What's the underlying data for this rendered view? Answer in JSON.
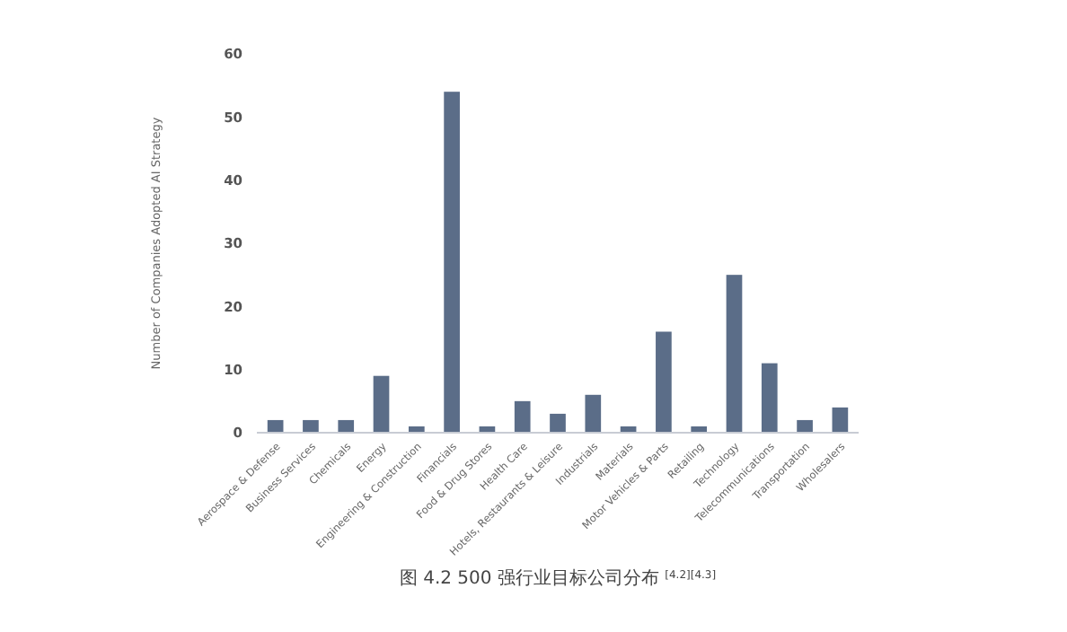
{
  "chart_data": {
    "type": "bar",
    "title": "图 4.2 500 强行业目标公司分布 $^{[4.2][4.3]}$",
    "ylabel": "Number of Companies Adopted AI Strategy",
    "categories": [
      "Aerospace & Defense",
      "Business Services",
      "Chemicals",
      "Energy",
      "Engineering & Construction",
      "Financials",
      "Food & Drug Stores",
      "Health Care",
      "Hotels, Restaurants & Leisure",
      "Industrials",
      "Materials",
      "Motor Vehicles & Parts",
      "Retailing",
      "Technology",
      "Telecommunications",
      "Transportation",
      "Wholesalers"
    ],
    "values": [
      2,
      2,
      2,
      9,
      1,
      54,
      1,
      5,
      3,
      6,
      1,
      16,
      1,
      25,
      11,
      2,
      4
    ],
    "color": "#5b6d88",
    "ylim": [
      0,
      60
    ],
    "yticks": [
      0,
      10,
      20,
      30,
      40,
      50,
      60
    ],
    "grid": false
  }
}
